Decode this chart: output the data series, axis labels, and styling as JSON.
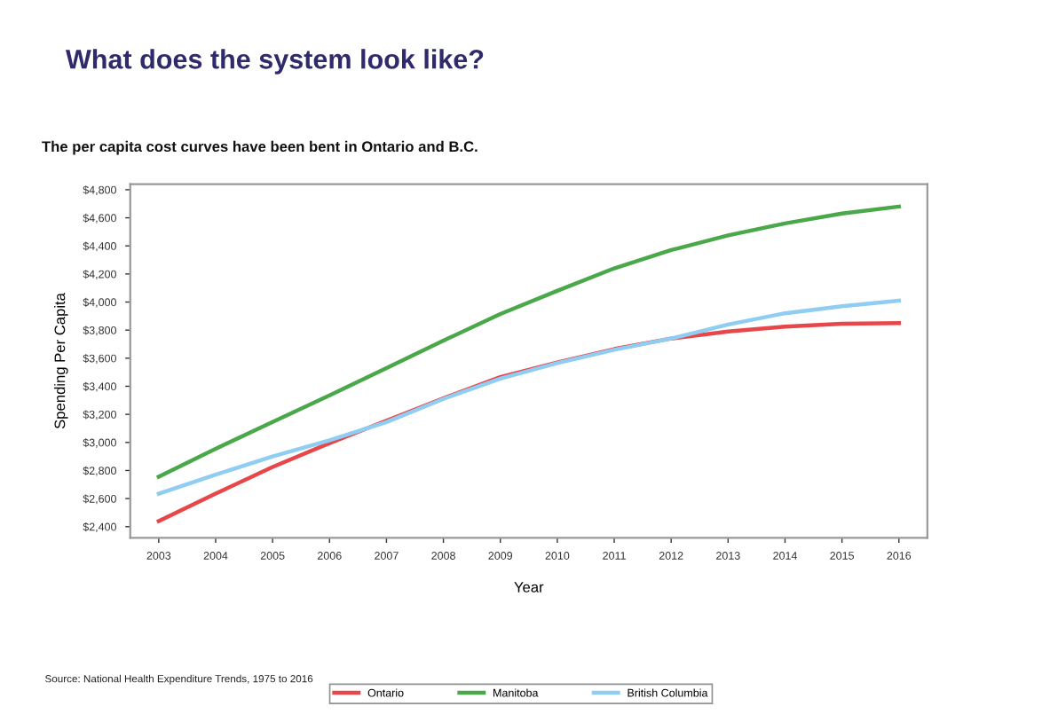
{
  "chart_data": {
    "type": "line",
    "title": "What does the system look like?",
    "subtitle": "The per capita cost curves have been bent in Ontario and B.C.",
    "xlabel": "Year",
    "ylabel": "Spending Per Capita",
    "x": [
      2003,
      2004,
      2005,
      2006,
      2007,
      2008,
      2009,
      2010,
      2011,
      2012,
      2013,
      2014,
      2015,
      2016
    ],
    "series": [
      {
        "name": "Ontario",
        "color": "#e8474a",
        "values": [
          2440,
          2635,
          2825,
          2995,
          3155,
          3315,
          3465,
          3570,
          3665,
          3740,
          3790,
          3825,
          3845,
          3850
        ]
      },
      {
        "name": "Manitoba",
        "color": "#4aa84a",
        "values": [
          2755,
          2955,
          3145,
          3335,
          3530,
          3725,
          3915,
          4080,
          4240,
          4370,
          4475,
          4560,
          4630,
          4680
        ]
      },
      {
        "name": "British Columbia",
        "color": "#8fcdf2",
        "values": [
          2635,
          2770,
          2900,
          3015,
          3145,
          3310,
          3455,
          3565,
          3660,
          3740,
          3840,
          3920,
          3970,
          4010
        ]
      }
    ],
    "xlim": [
      2002.5,
      2016.5
    ],
    "ylim": [
      2320,
      4840
    ],
    "xticks": [
      2003,
      2004,
      2005,
      2006,
      2007,
      2008,
      2009,
      2010,
      2011,
      2012,
      2013,
      2014,
      2015,
      2016
    ],
    "yticks": [
      {
        "value": 2400,
        "label": "$2,400"
      },
      {
        "value": 2600,
        "label": "$2,600"
      },
      {
        "value": 2800,
        "label": "$2,800"
      },
      {
        "value": 3000,
        "label": "$3,000"
      },
      {
        "value": 3200,
        "label": "$3,200"
      },
      {
        "value": 3400,
        "label": "$3,400"
      },
      {
        "value": 3600,
        "label": "$3,600"
      },
      {
        "value": 3800,
        "label": "$3,800"
      },
      {
        "value": 4000,
        "label": "$4,000"
      },
      {
        "value": 4200,
        "label": "$4,200"
      },
      {
        "value": 4400,
        "label": "$4,400"
      },
      {
        "value": 4600,
        "label": "$4,600"
      },
      {
        "value": 4800,
        "label": "$4,800"
      }
    ],
    "grid": false,
    "legend": "bottom",
    "marker": "none",
    "line_style": "solid",
    "annotations": [
      "Source: National Health Expenditure Trends, 1975 to 2016"
    ]
  }
}
